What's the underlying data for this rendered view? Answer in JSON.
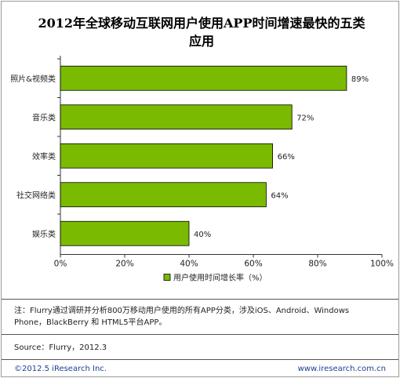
{
  "chart_data": {
    "type": "bar",
    "orientation": "horizontal",
    "title": "2012年全球移动互联网用户使用APP时间增速最快的五类应用",
    "categories": [
      "照片&视频类",
      "音乐类",
      "效率类",
      "社交网络类",
      "娱乐类"
    ],
    "series": [
      {
        "name": "用户使用时间增长率（%）",
        "values": [
          89,
          72,
          66,
          64,
          40
        ]
      }
    ],
    "value_labels": [
      "89%",
      "72%",
      "66%",
      "64%",
      "40%"
    ],
    "xlim": [
      0,
      100
    ],
    "x_ticks": [
      "0%",
      "20%",
      "40%",
      "60%",
      "80%",
      "100%"
    ],
    "grid": false,
    "legend_position": "bottom",
    "colors": {
      "bar": "#7aba00",
      "bar_stroke": "#000000"
    }
  },
  "note": "注：Flurry通过调研并分析800万移动用户使用的所有APP分类，涉及iOS、Android、Windows Phone，BlackBerry 和 HTML5平台APP。",
  "source": "Source：Flurry，2012.3",
  "footer": {
    "copyright": "©2012.5 iResearch Inc.",
    "website": "www.iresearch.com.cn"
  }
}
